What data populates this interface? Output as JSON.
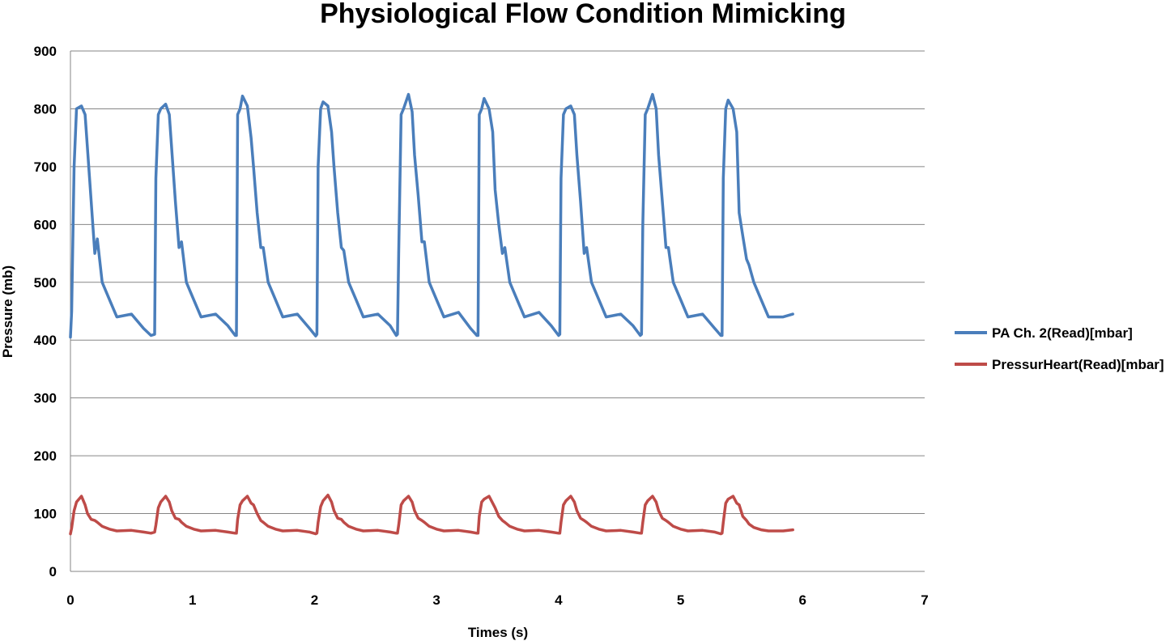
{
  "chart_data": {
    "type": "line",
    "title": "Physiological Flow Condition Mimicking",
    "xlabel": "Times (s)",
    "ylabel": "Pressure (mb)",
    "xlim": [
      0,
      7
    ],
    "ylim": [
      0,
      900
    ],
    "xticks": [
      "0",
      "1",
      "2",
      "3",
      "4",
      "5",
      "6",
      "7"
    ],
    "yticks": [
      "0",
      "100",
      "200",
      "300",
      "400",
      "500",
      "600",
      "700",
      "800",
      "900"
    ],
    "grid": "horizontal",
    "legend_position": "right",
    "x": [
      0,
      0.01,
      0.03,
      0.05,
      0.09,
      0.12,
      0.14,
      0.17,
      0.2,
      0.22,
      0.26,
      0.32,
      0.38,
      0.5,
      0.6,
      0.66,
      0.69,
      0.7,
      0.72,
      0.74,
      0.78,
      0.81,
      0.83,
      0.86,
      0.89,
      0.91,
      0.95,
      1.01,
      1.07,
      1.19,
      1.29,
      1.35,
      1.36,
      1.37,
      1.39,
      1.41,
      1.45,
      1.48,
      1.5,
      1.53,
      1.56,
      1.58,
      1.62,
      1.68,
      1.74,
      1.86,
      1.96,
      2.01,
      2.02,
      2.03,
      2.05,
      2.07,
      2.11,
      2.14,
      2.16,
      2.19,
      2.22,
      2.24,
      2.28,
      2.34,
      2.4,
      2.52,
      2.62,
      2.67,
      2.68,
      2.69,
      2.71,
      2.73,
      2.77,
      2.8,
      2.82,
      2.85,
      2.88,
      2.9,
      2.94,
      3.0,
      3.06,
      3.18,
      3.28,
      3.33,
      3.34,
      3.35,
      3.37,
      3.39,
      3.43,
      3.46,
      3.48,
      3.51,
      3.54,
      3.56,
      3.6,
      3.66,
      3.72,
      3.84,
      3.94,
      4.0,
      4.01,
      4.02,
      4.04,
      4.06,
      4.1,
      4.13,
      4.15,
      4.18,
      4.21,
      4.23,
      4.27,
      4.33,
      4.39,
      4.51,
      4.61,
      4.67,
      4.68,
      4.69,
      4.71,
      4.73,
      4.77,
      4.8,
      4.82,
      4.85,
      4.88,
      4.9,
      4.94,
      5.0,
      5.06,
      5.18,
      5.28,
      5.33,
      5.34,
      5.35,
      5.37,
      5.39,
      5.43,
      5.46,
      5.48,
      5.51,
      5.54,
      5.56,
      5.6,
      5.66,
      5.72,
      5.84,
      5.92
    ],
    "series": [
      {
        "name": "PA Ch.  2(Read)[mbar]",
        "color": "#4a7ebb",
        "values": [
          405,
          450,
          700,
          800,
          805,
          790,
          730,
          640,
          550,
          575,
          500,
          470,
          440,
          445,
          420,
          408,
          410,
          680,
          790,
          800,
          808,
          790,
          730,
          640,
          560,
          570,
          500,
          470,
          440,
          445,
          425,
          408,
          408,
          790,
          800,
          822,
          805,
          750,
          700,
          620,
          560,
          560,
          500,
          470,
          440,
          445,
          420,
          407,
          410,
          700,
          800,
          812,
          805,
          760,
          700,
          620,
          560,
          555,
          500,
          470,
          440,
          445,
          425,
          408,
          410,
          550,
          790,
          800,
          825,
          795,
          720,
          650,
          570,
          570,
          500,
          470,
          440,
          448,
          420,
          408,
          408,
          790,
          800,
          818,
          800,
          760,
          660,
          600,
          550,
          560,
          500,
          470,
          440,
          448,
          425,
          408,
          410,
          680,
          790,
          800,
          805,
          790,
          720,
          640,
          550,
          560,
          500,
          470,
          440,
          445,
          425,
          408,
          410,
          600,
          790,
          800,
          825,
          800,
          720,
          640,
          560,
          560,
          500,
          470,
          440,
          445,
          420,
          408,
          408,
          680,
          800,
          815,
          800,
          760,
          620,
          580,
          540,
          530,
          500,
          470,
          440,
          440,
          445
        ]
      },
      {
        "name": "PressurHeart(Read)[mbar]",
        "color": "#be4b48",
        "values": [
          65,
          75,
          105,
          120,
          130,
          115,
          100,
          90,
          88,
          85,
          78,
          73,
          70,
          71,
          68,
          66,
          68,
          80,
          110,
          120,
          130,
          120,
          105,
          92,
          90,
          85,
          78,
          73,
          70,
          71,
          68,
          66,
          66,
          90,
          115,
          122,
          130,
          118,
          115,
          100,
          88,
          85,
          78,
          73,
          70,
          71,
          68,
          65,
          66,
          85,
          112,
          122,
          132,
          120,
          105,
          92,
          90,
          85,
          78,
          73,
          70,
          71,
          68,
          66,
          66,
          80,
          115,
          122,
          130,
          120,
          105,
          92,
          88,
          85,
          78,
          73,
          70,
          71,
          68,
          66,
          66,
          95,
          120,
          125,
          130,
          118,
          110,
          95,
          88,
          85,
          78,
          73,
          70,
          71,
          68,
          66,
          66,
          85,
          115,
          122,
          130,
          120,
          105,
          92,
          88,
          85,
          78,
          73,
          70,
          71,
          68,
          66,
          66,
          85,
          115,
          122,
          130,
          120,
          105,
          92,
          88,
          85,
          78,
          73,
          70,
          71,
          68,
          65,
          66,
          85,
          118,
          125,
          130,
          118,
          115,
          95,
          88,
          82,
          76,
          72,
          70,
          70,
          72
        ]
      }
    ]
  }
}
